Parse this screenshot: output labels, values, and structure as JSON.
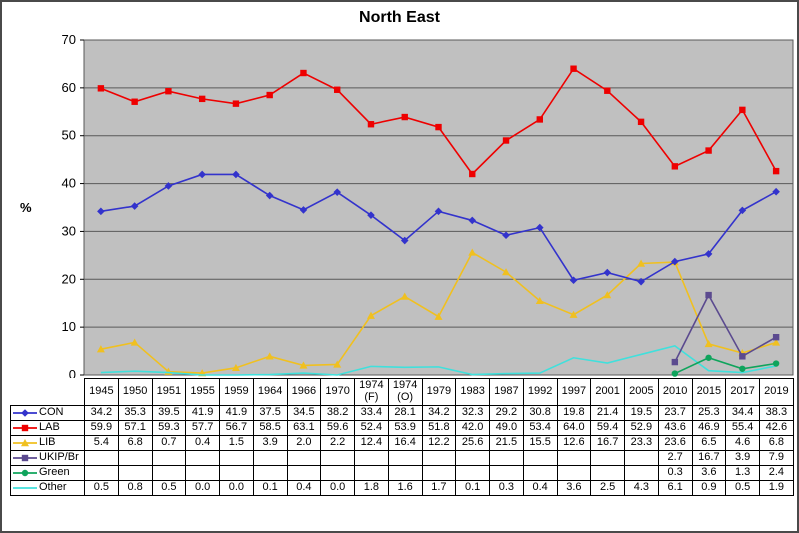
{
  "title": "North East",
  "chart_data": {
    "type": "line",
    "title": "North East",
    "xlabel": "",
    "ylabel": "%",
    "ylim": [
      0,
      70
    ],
    "ytick_step": 10,
    "grid": true,
    "plot_bg": "#c0c0c0",
    "grid_color": "#595959",
    "legend_position": "table-left",
    "categories": [
      "1945",
      "1950",
      "1951",
      "1955",
      "1959",
      "1964",
      "1966",
      "1970",
      "1974 (F)",
      "1974 (O)",
      "1979",
      "1983",
      "1987",
      "1992",
      "1997",
      "2001",
      "2005",
      "2010",
      "2015",
      "2017",
      "2019"
    ],
    "series": [
      {
        "name": "CON",
        "color": "#3333cc",
        "marker": "diamond",
        "values": [
          34.2,
          35.3,
          39.5,
          41.9,
          41.9,
          37.5,
          34.5,
          38.2,
          33.4,
          28.1,
          34.2,
          32.3,
          29.2,
          30.8,
          19.8,
          21.4,
          19.5,
          23.7,
          25.3,
          34.4,
          38.3
        ]
      },
      {
        "name": "LAB",
        "color": "#ee0000",
        "marker": "square",
        "values": [
          59.9,
          57.1,
          59.3,
          57.7,
          56.7,
          58.5,
          63.1,
          59.6,
          52.4,
          53.9,
          51.8,
          42.0,
          49.0,
          53.4,
          64.0,
          59.4,
          52.9,
          43.6,
          46.9,
          55.4,
          42.6
        ]
      },
      {
        "name": "LIB",
        "color": "#f0c020",
        "marker": "triangle",
        "values": [
          5.4,
          6.8,
          0.7,
          0.4,
          1.5,
          3.9,
          2.0,
          2.2,
          12.4,
          16.4,
          12.2,
          25.6,
          21.5,
          15.5,
          12.6,
          16.7,
          23.3,
          23.6,
          6.5,
          4.6,
          6.8
        ]
      },
      {
        "name": "UKIP/Br",
        "color": "#5b4a8f",
        "marker": "square",
        "values": [
          null,
          null,
          null,
          null,
          null,
          null,
          null,
          null,
          null,
          null,
          null,
          null,
          null,
          null,
          null,
          null,
          null,
          2.7,
          16.7,
          3.9,
          7.9
        ]
      },
      {
        "name": "Green",
        "color": "#0fa45c",
        "marker": "circle",
        "values": [
          null,
          null,
          null,
          null,
          null,
          null,
          null,
          null,
          null,
          null,
          null,
          null,
          null,
          null,
          null,
          null,
          null,
          0.3,
          3.6,
          1.3,
          2.4
        ]
      },
      {
        "name": "Other",
        "color": "#40e0dc",
        "marker": "none",
        "values": [
          0.5,
          0.8,
          0.5,
          0.0,
          0.0,
          0.1,
          0.4,
          0.0,
          1.8,
          1.6,
          1.7,
          0.1,
          0.3,
          0.4,
          3.6,
          2.5,
          4.3,
          6.1,
          0.9,
          0.5,
          1.9
        ]
      }
    ]
  }
}
